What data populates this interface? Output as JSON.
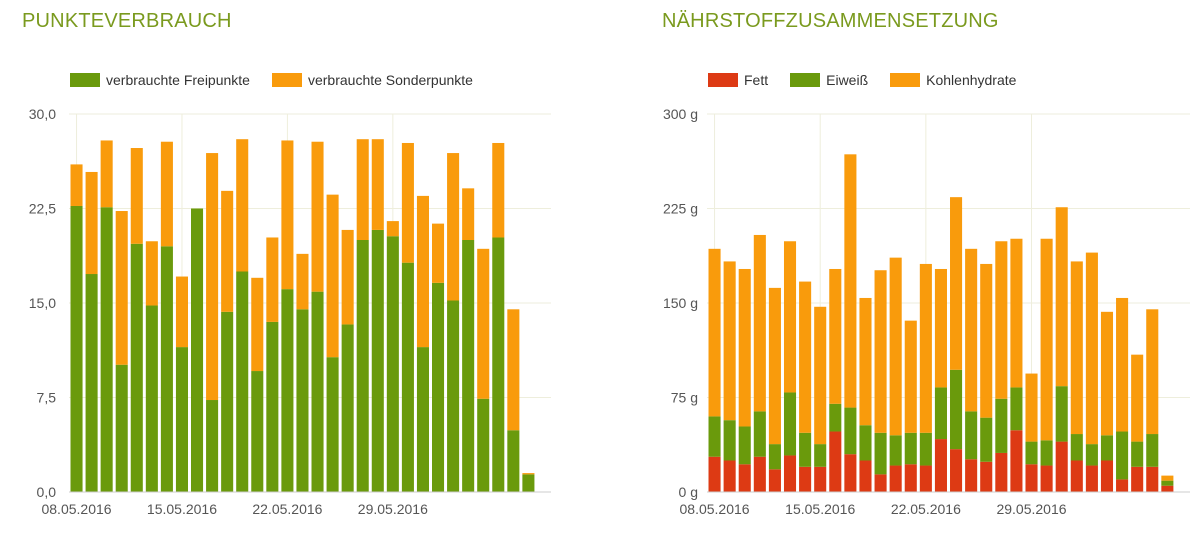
{
  "colors": {
    "title": "#7a9a1e",
    "freipunkte": "#6a9a0c",
    "sonderpunkte": "#f99b0c",
    "fett": "#dd3a14",
    "eiweiss": "#6a9a0c",
    "kohlenhydrate": "#f99b0c",
    "grid": "#eeeedc"
  },
  "chart_data": [
    {
      "type": "bar",
      "stacked": true,
      "title": "PUNKTEVERBRAUCH",
      "legend": [
        "verbrauchte Freipunkte",
        "verbrauchte Sonderpunkte"
      ],
      "legend_position": "top-left",
      "grid": true,
      "ylim": [
        0,
        30
      ],
      "yticks": [
        "0,0",
        "7,5",
        "15,0",
        "22,5",
        "30,0"
      ],
      "xtick_labels": [
        "08.05.2016",
        "15.05.2016",
        "22.05.2016",
        "29.05.2016"
      ],
      "categories": [
        "08.05.2016",
        "09.05.2016",
        "10.05.2016",
        "11.05.2016",
        "12.05.2016",
        "13.05.2016",
        "14.05.2016",
        "15.05.2016",
        "16.05.2016",
        "17.05.2016",
        "18.05.2016",
        "19.05.2016",
        "20.05.2016",
        "21.05.2016",
        "22.05.2016",
        "23.05.2016",
        "24.05.2016",
        "25.05.2016",
        "26.05.2016",
        "27.05.2016",
        "28.05.2016",
        "29.05.2016",
        "30.05.2016",
        "31.05.2016",
        "01.06.2016",
        "02.06.2016",
        "03.06.2016",
        "04.06.2016",
        "05.06.2016",
        "06.06.2016",
        "07.06.2016",
        "08.06.2016"
      ],
      "series": [
        {
          "name": "verbrauchte Freipunkte",
          "values": [
            22.7,
            17.3,
            22.6,
            10.1,
            19.7,
            14.8,
            19.5,
            11.5,
            22.5,
            7.3,
            14.3,
            17.5,
            9.6,
            13.5,
            16.1,
            14.5,
            15.9,
            10.7,
            13.3,
            20.0,
            20.8,
            20.3,
            18.2,
            11.5,
            16.6,
            15.2,
            20.0,
            7.4,
            20.2,
            4.9,
            1.4,
            0
          ]
        },
        {
          "name": "verbrauchte Sonderpunkte",
          "values": [
            3.3,
            8.1,
            5.3,
            12.2,
            7.6,
            5.1,
            8.3,
            5.6,
            0.0,
            19.6,
            9.6,
            10.5,
            7.4,
            6.7,
            11.8,
            4.4,
            11.9,
            12.9,
            7.5,
            8.0,
            7.2,
            1.2,
            9.5,
            12.0,
            4.7,
            11.7,
            4.1,
            11.9,
            7.5,
            9.6,
            0.1,
            0
          ]
        }
      ]
    },
    {
      "type": "bar",
      "stacked": true,
      "title": "NÄHRSTOFFZUSAMMENSETZUNG",
      "legend": [
        "Fett",
        "Eiweiß",
        "Kohlenhydrate"
      ],
      "legend_position": "top-left",
      "grid": true,
      "ylim": [
        0,
        300
      ],
      "yticks": [
        "0 g",
        "75 g",
        "150 g",
        "225 g",
        "300 g"
      ],
      "xtick_labels": [
        "08.05.2016",
        "15.05.2016",
        "22.05.2016",
        "29.05.2016"
      ],
      "categories": [
        "08.05.2016",
        "09.05.2016",
        "10.05.2016",
        "11.05.2016",
        "12.05.2016",
        "13.05.2016",
        "14.05.2016",
        "15.05.2016",
        "16.05.2016",
        "17.05.2016",
        "18.05.2016",
        "19.05.2016",
        "20.05.2016",
        "21.05.2016",
        "22.05.2016",
        "23.05.2016",
        "24.05.2016",
        "25.05.2016",
        "26.05.2016",
        "27.05.2016",
        "28.05.2016",
        "29.05.2016",
        "30.05.2016",
        "31.05.2016",
        "01.06.2016",
        "02.06.2016",
        "03.06.2016",
        "04.06.2016",
        "05.06.2016",
        "06.06.2016",
        "07.06.2016",
        "08.06.2016"
      ],
      "series": [
        {
          "name": "Fett",
          "values": [
            28,
            25,
            22,
            28,
            18,
            29,
            20,
            20,
            48,
            30,
            25,
            14,
            21,
            22,
            21,
            42,
            34,
            26,
            24,
            31,
            49,
            22,
            21,
            40,
            25,
            21,
            25,
            10,
            20,
            20,
            5,
            0
          ]
        },
        {
          "name": "Eiweiß",
          "values": [
            32,
            32,
            30,
            36,
            20,
            50,
            27,
            18,
            22,
            37,
            28,
            33,
            24,
            25,
            26,
            41,
            63,
            38,
            35,
            43,
            34,
            18,
            20,
            44,
            21,
            17,
            20,
            38,
            20,
            26,
            4,
            0
          ]
        },
        {
          "name": "Kohlenhydrate",
          "values": [
            133,
            126,
            125,
            140,
            124,
            120,
            120,
            109,
            107,
            201,
            101,
            129,
            141,
            89,
            134,
            94,
            137,
            129,
            122,
            125,
            118,
            54,
            160,
            142,
            137,
            152,
            98,
            106,
            69,
            99,
            4,
            0
          ]
        }
      ]
    }
  ]
}
